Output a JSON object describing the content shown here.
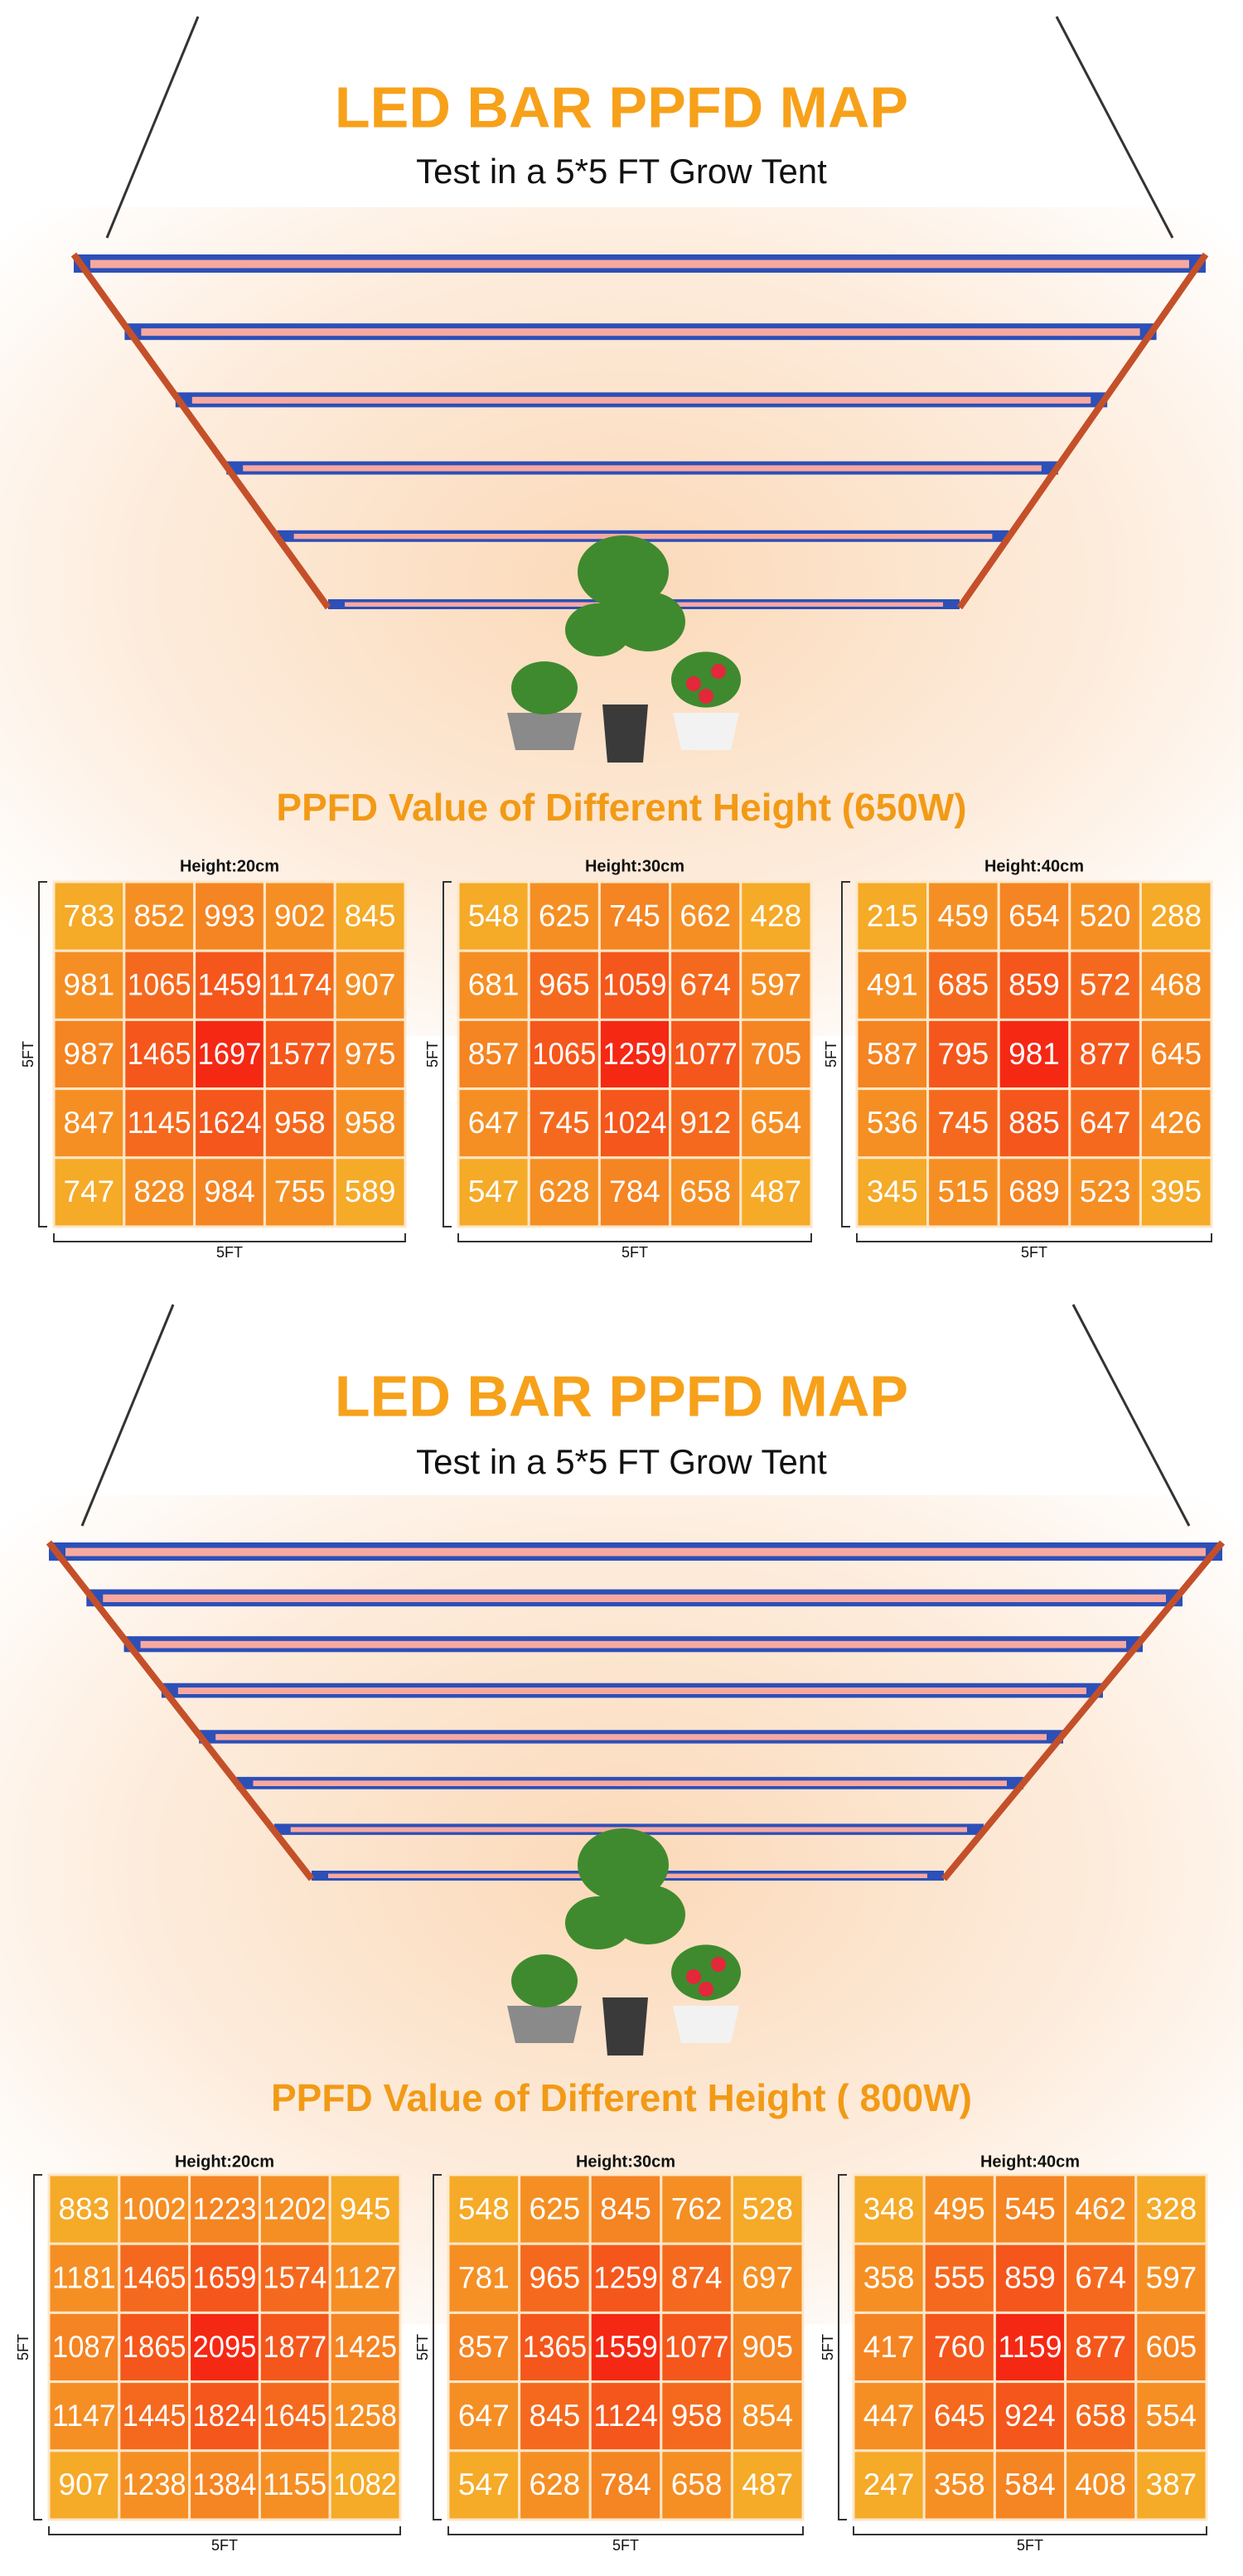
{
  "panels": [
    {
      "title": "LED BAR PPFD MAP",
      "subtitle": "Test in a 5*5 FT Grow Tent",
      "heading": "PPFD Value of Different Height (650W)",
      "grids": [
        {
          "label": "Height:20cm",
          "x_label": "5FT",
          "y_label": "5FT",
          "rows": [
            [
              783,
              852,
              993,
              902,
              845
            ],
            [
              981,
              1065,
              1459,
              1174,
              907
            ],
            [
              987,
              1465,
              1697,
              1577,
              975
            ],
            [
              847,
              1145,
              1624,
              958,
              958
            ],
            [
              747,
              828,
              984,
              755,
              589
            ]
          ]
        },
        {
          "label": "Height:30cm",
          "x_label": "5FT",
          "y_label": "5FT",
          "rows": [
            [
              548,
              625,
              745,
              662,
              428
            ],
            [
              681,
              965,
              1059,
              674,
              597
            ],
            [
              857,
              1065,
              1259,
              1077,
              705
            ],
            [
              647,
              745,
              1024,
              912,
              654
            ],
            [
              547,
              628,
              784,
              658,
              487
            ]
          ]
        },
        {
          "label": "Height:40cm",
          "x_label": "5FT",
          "y_label": "5FT",
          "rows": [
            [
              215,
              459,
              654,
              520,
              288
            ],
            [
              491,
              685,
              859,
              572,
              468
            ],
            [
              587,
              795,
              981,
              877,
              645
            ],
            [
              536,
              745,
              885,
              647,
              426
            ],
            [
              345,
              515,
              689,
              523,
              395
            ]
          ]
        }
      ]
    },
    {
      "title": "LED BAR PPFD MAP",
      "subtitle": "Test in a 5*5 FT Grow Tent",
      "heading": "PPFD Value of Different Height ( 800W)",
      "grids": [
        {
          "label": "Height:20cm",
          "x_label": "5FT",
          "y_label": "5FT",
          "rows": [
            [
              883,
              1002,
              1223,
              1202,
              945
            ],
            [
              1181,
              1465,
              1659,
              1574,
              1127
            ],
            [
              1087,
              1865,
              2095,
              1877,
              1425
            ],
            [
              1147,
              1445,
              1824,
              1645,
              1258
            ],
            [
              907,
              1238,
              1384,
              1155,
              1082
            ]
          ]
        },
        {
          "label": "Height:30cm",
          "x_label": "5FT",
          "y_label": "5FT",
          "rows": [
            [
              548,
              625,
              845,
              762,
              528
            ],
            [
              781,
              965,
              1259,
              874,
              697
            ],
            [
              857,
              1365,
              1559,
              1077,
              905
            ],
            [
              647,
              845,
              1124,
              958,
              854
            ],
            [
              547,
              628,
              784,
              658,
              487
            ]
          ]
        },
        {
          "label": "Height:40cm",
          "x_label": "5FT",
          "y_label": "5FT",
          "rows": [
            [
              348,
              495,
              545,
              462,
              328
            ],
            [
              358,
              555,
              859,
              674,
              597
            ],
            [
              417,
              760,
              1159,
              877,
              605
            ],
            [
              447,
              645,
              924,
              658,
              554
            ],
            [
              247,
              358,
              584,
              408,
              387
            ]
          ]
        }
      ]
    }
  ]
}
